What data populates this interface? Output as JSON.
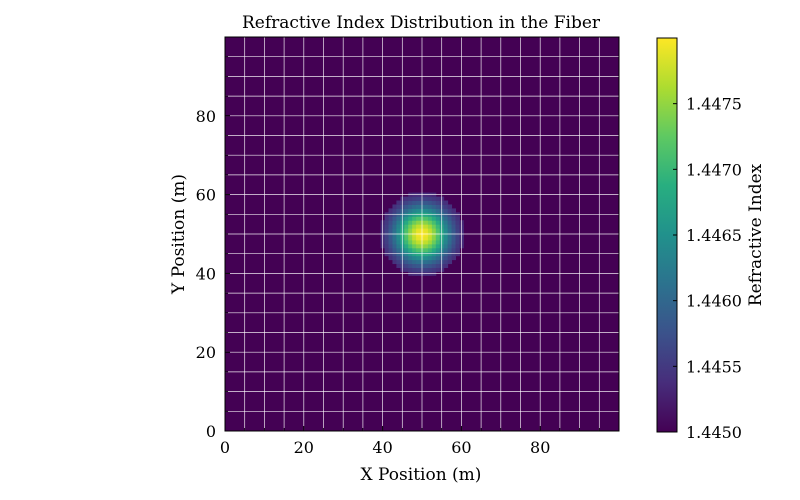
{
  "chart_data": {
    "type": "heatmap",
    "title": "Refractive Index Distribution in the Fiber",
    "xlabel": "X Position (m)",
    "ylabel": "Y Position (m)",
    "xlim": [
      0,
      100
    ],
    "ylim": [
      0,
      100
    ],
    "xticks": [
      0,
      20,
      40,
      60,
      80
    ],
    "yticks": [
      0,
      20,
      40,
      60,
      80
    ],
    "xtick_labels": [
      "0",
      "20",
      "40",
      "60",
      "80"
    ],
    "ytick_labels": [
      "0",
      "20",
      "40",
      "60",
      "80"
    ],
    "grid": true,
    "grid_color": "#ffffff",
    "colormap": "viridis",
    "field": {
      "description_type": "gaussian-core",
      "core_center": [
        50,
        50
      ],
      "core_radius": 10,
      "grid_size": 100,
      "background_index": 1.445,
      "peak_index": 1.448
    },
    "colorbar": {
      "label": "Refractive Index",
      "vmin": 1.445,
      "vmax": 1.448,
      "ticks": [
        1.445,
        1.4455,
        1.446,
        1.4465,
        1.447,
        1.4475
      ],
      "tick_labels": [
        "1.4450",
        "1.4455",
        "1.4460",
        "1.4465",
        "1.4470",
        "1.4475"
      ]
    }
  }
}
